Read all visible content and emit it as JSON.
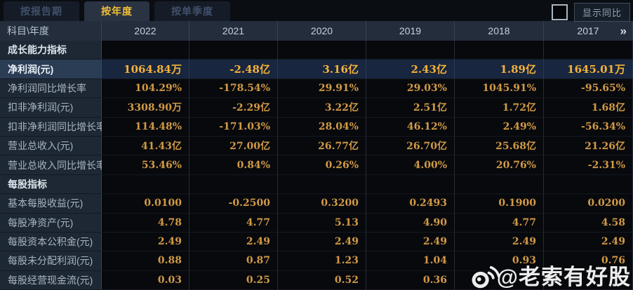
{
  "tabs": [
    {
      "label": "按报告期",
      "active": false
    },
    {
      "label": "按年度",
      "active": true
    },
    {
      "label": "按单季度",
      "active": false
    }
  ],
  "controls": {
    "show_yoy_label": "显示同比",
    "checkbox_checked": false
  },
  "table": {
    "corner_header": "科目\\年度",
    "year_columns": [
      "2022",
      "2021",
      "2020",
      "2019",
      "2018",
      "2017"
    ],
    "more_years_icon": "»",
    "rows": [
      {
        "type": "section",
        "label": "成长能力指标",
        "values": [
          "",
          "",
          "",
          "",
          "",
          ""
        ]
      },
      {
        "type": "highlight",
        "label": "净利润(元)",
        "values": [
          "1064.84万",
          "-2.48亿",
          "3.16亿",
          "2.43亿",
          "1.89亿",
          "1645.01万"
        ]
      },
      {
        "type": "data",
        "label": "净利润同比增长率",
        "values": [
          "104.29%",
          "-178.54%",
          "29.91%",
          "29.03%",
          "1045.91%",
          "-95.65%"
        ]
      },
      {
        "type": "data",
        "label": "扣非净利润(元)",
        "values": [
          "3308.90万",
          "-2.29亿",
          "3.22亿",
          "2.51亿",
          "1.72亿",
          "1.68亿"
        ]
      },
      {
        "type": "data",
        "label": "扣非净利润同比增长率",
        "values": [
          "114.48%",
          "-171.03%",
          "28.04%",
          "46.12%",
          "2.49%",
          "-56.34%"
        ]
      },
      {
        "type": "data",
        "label": "营业总收入(元)",
        "values": [
          "41.43亿",
          "27.00亿",
          "26.77亿",
          "26.70亿",
          "25.68亿",
          "21.26亿"
        ]
      },
      {
        "type": "data",
        "label": "营业总收入同比增长率",
        "values": [
          "53.46%",
          "0.84%",
          "0.26%",
          "4.00%",
          "20.76%",
          "-2.31%"
        ]
      },
      {
        "type": "section",
        "label": "每股指标",
        "values": [
          "",
          "",
          "",
          "",
          "",
          ""
        ]
      },
      {
        "type": "data",
        "label": "基本每股收益(元)",
        "values": [
          "0.0100",
          "-0.2500",
          "0.3200",
          "0.2493",
          "0.1900",
          "0.0200"
        ]
      },
      {
        "type": "data",
        "label": "每股净资产(元)",
        "values": [
          "4.78",
          "4.77",
          "5.13",
          "4.90",
          "4.77",
          "4.58"
        ]
      },
      {
        "type": "data",
        "label": "每股资本公积金(元)",
        "values": [
          "2.49",
          "2.49",
          "2.49",
          "2.49",
          "2.49",
          "2.49"
        ]
      },
      {
        "type": "data",
        "label": "每股未分配利润(元)",
        "values": [
          "0.88",
          "0.87",
          "1.23",
          "1.04",
          "0.93",
          "0.76"
        ]
      },
      {
        "type": "data",
        "label": "每股经营现金流(元)",
        "values": [
          "0.03",
          "0.25",
          "0.52",
          "0.36",
          "",
          ""
        ]
      }
    ]
  },
  "watermark": {
    "icon": "weibo-icon",
    "text": "@老索有好股"
  },
  "colors": {
    "value_orange": "#d29a45",
    "highlight_value_orange": "#f4b238",
    "active_tab_text": "#f2c035",
    "highlight_row_bg": "#2b3c55",
    "label_cell_bg": "#1e2834",
    "header_row_bg": "#232d3c",
    "cell_bg": "#07090d"
  }
}
